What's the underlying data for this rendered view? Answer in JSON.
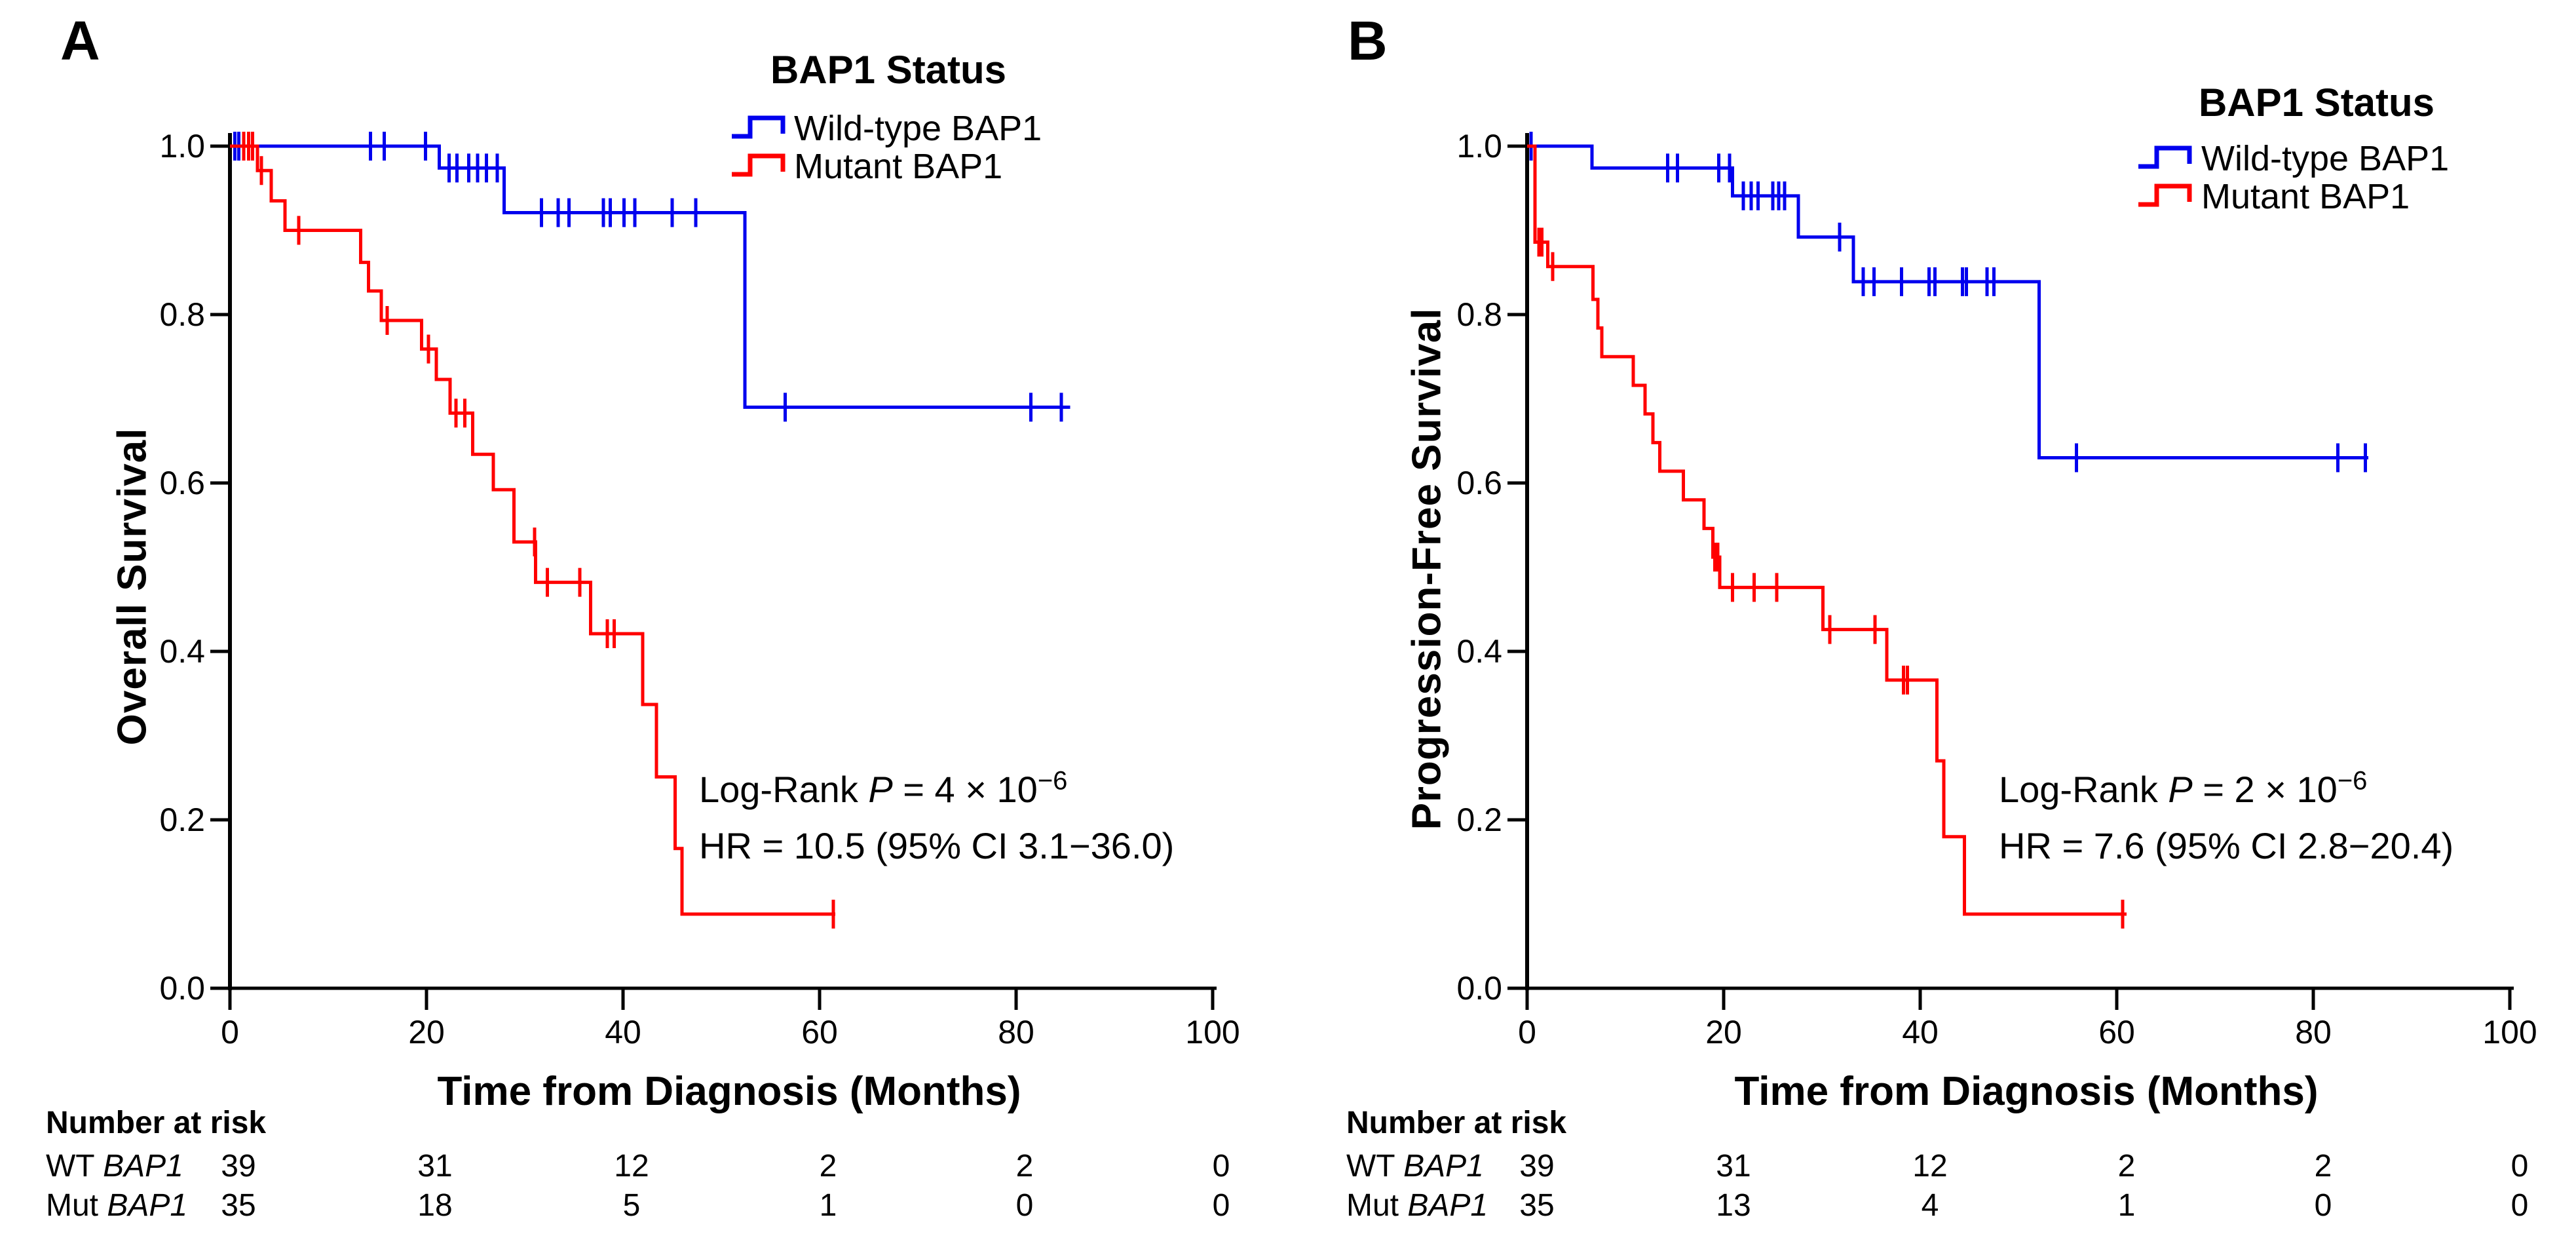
{
  "figure": {
    "description": "Kaplan-Meier survival curves by BAP1 mutation status, two panels",
    "accent_colors": {
      "wild_type": "#0000ee",
      "mutant": "#ff0000",
      "axis": "#000000"
    }
  },
  "chart_data": [
    {
      "type": "line",
      "subtype": "kaplan-meier-step",
      "panel_label": "A",
      "ylabel": "Overall  Survival",
      "xlabel": "Time from Diagnosis (Months)",
      "xlim": [
        0,
        100
      ],
      "ylim": [
        0.0,
        1.0
      ],
      "xticks": [
        "0",
        "20",
        "40",
        "60",
        "80",
        "100"
      ],
      "yticks": [
        "0.0",
        "0.2",
        "0.4",
        "0.6",
        "0.8",
        "1.0"
      ],
      "grid": false,
      "legend": {
        "title": "BAP1 Status",
        "position": "top-right-of-plot",
        "entries": [
          {
            "label": "Wild-type BAP1",
            "color": "#0000ee"
          },
          {
            "label": "Mutant BAP1",
            "color": "#ff0000"
          }
        ]
      },
      "annotation": {
        "logrank_prefix": "Log-Rank ",
        "logrank_p": "P",
        "logrank_value": " = 4 × 10",
        "logrank_exponent": "−6",
        "hr_line": "HR = 10.5 (95% CI 3.1−36.0)"
      },
      "series": [
        {
          "name": "Wild-type BAP1",
          "color": "#0000ee",
          "start_value": 1.0,
          "end_time": 85.5,
          "steps": [
            [
              21.3,
              0.974
            ],
            [
              27.9,
              0.921
            ],
            [
              52.4,
              0.69
            ]
          ],
          "censors": [
            [
              0.5,
              1.0
            ],
            [
              0.9,
              1.0
            ],
            [
              14.3,
              1.0
            ],
            [
              15.7,
              1.0
            ],
            [
              19.9,
              1.0
            ],
            [
              22.3,
              0.974
            ],
            [
              23.1,
              0.974
            ],
            [
              24.3,
              0.974
            ],
            [
              25.2,
              0.974
            ],
            [
              26.1,
              0.974
            ],
            [
              27.2,
              0.974
            ],
            [
              31.7,
              0.921
            ],
            [
              33.4,
              0.921
            ],
            [
              34.5,
              0.921
            ],
            [
              38.0,
              0.921
            ],
            [
              38.7,
              0.921
            ],
            [
              40.1,
              0.921
            ],
            [
              41.2,
              0.921
            ],
            [
              45.0,
              0.921
            ],
            [
              47.4,
              0.921
            ],
            [
              56.5,
              0.69
            ],
            [
              81.5,
              0.69
            ],
            [
              84.6,
              0.69
            ]
          ]
        },
        {
          "name": "Mutant BAP1",
          "color": "#ff0000",
          "start_value": 1.0,
          "end_time": 61.6,
          "steps": [
            [
              2.8,
              0.971
            ],
            [
              4.2,
              0.935
            ],
            [
              5.6,
              0.9
            ],
            [
              13.3,
              0.862
            ],
            [
              14.1,
              0.828
            ],
            [
              15.4,
              0.793
            ],
            [
              19.5,
              0.759
            ],
            [
              21.0,
              0.723
            ],
            [
              22.4,
              0.683
            ],
            [
              24.7,
              0.634
            ],
            [
              26.8,
              0.592
            ],
            [
              28.9,
              0.53
            ],
            [
              31.1,
              0.482
            ],
            [
              36.7,
              0.421
            ],
            [
              42.0,
              0.337
            ],
            [
              43.4,
              0.251
            ],
            [
              45.3,
              0.166
            ],
            [
              46.0,
              0.088
            ]
          ],
          "censors": [
            [
              1.4,
              1.0
            ],
            [
              1.9,
              1.0
            ],
            [
              2.3,
              1.0
            ],
            [
              3.2,
              0.971
            ],
            [
              7.0,
              0.9
            ],
            [
              16.0,
              0.793
            ],
            [
              20.2,
              0.759
            ],
            [
              23.0,
              0.683
            ],
            [
              23.9,
              0.683
            ],
            [
              31.0,
              0.53
            ],
            [
              32.3,
              0.482
            ],
            [
              35.6,
              0.482
            ],
            [
              38.4,
              0.421
            ],
            [
              39.1,
              0.421
            ],
            [
              61.4,
              0.088
            ]
          ]
        }
      ],
      "risk_table": {
        "header": "Number at risk",
        "rows": [
          {
            "prefix": "WT ",
            "gene": "BAP1",
            "counts": [
              "39",
              "31",
              "12",
              "2",
              "2",
              "0"
            ]
          },
          {
            "prefix": "Mut ",
            "gene": "BAP1",
            "counts": [
              "35",
              "18",
              "5",
              "1",
              "0",
              "0"
            ]
          }
        ]
      }
    },
    {
      "type": "line",
      "subtype": "kaplan-meier-step",
      "panel_label": "B",
      "ylabel": "Progression-Free  Survival",
      "xlabel": "Time from Diagnosis (Months)",
      "xlim": [
        0,
        100
      ],
      "ylim": [
        0.0,
        1.0
      ],
      "xticks": [
        "0",
        "20",
        "40",
        "60",
        "80",
        "100"
      ],
      "yticks": [
        "0.0",
        "0.2",
        "0.4",
        "0.6",
        "0.8",
        "1.0"
      ],
      "grid": false,
      "legend": {
        "title": "BAP1 Status",
        "position": "top-right-of-plot",
        "entries": [
          {
            "label": "Wild-type BAP1",
            "color": "#0000ee"
          },
          {
            "label": "Mutant BAP1",
            "color": "#ff0000"
          }
        ]
      },
      "annotation": {
        "logrank_prefix": "Log-Rank ",
        "logrank_p": "P",
        "logrank_value": " = 2 × 10",
        "logrank_exponent": "−6",
        "hr_line": "HR = 7.6 (95% CI 2.8−20.4)"
      },
      "series": [
        {
          "name": "Wild-type BAP1",
          "color": "#0000ee",
          "start_value": 1.0,
          "end_time": 85.6,
          "steps": [
            [
              6.6,
              0.974
            ],
            [
              20.9,
              0.941
            ],
            [
              27.6,
              0.892
            ],
            [
              33.2,
              0.839
            ],
            [
              52.1,
              0.63
            ]
          ],
          "censors": [
            [
              0.4,
              1.0
            ],
            [
              14.3,
              0.974
            ],
            [
              15.3,
              0.974
            ],
            [
              19.5,
              0.974
            ],
            [
              20.6,
              0.974
            ],
            [
              22.0,
              0.941
            ],
            [
              22.8,
              0.941
            ],
            [
              23.5,
              0.941
            ],
            [
              25.0,
              0.941
            ],
            [
              25.6,
              0.941
            ],
            [
              26.2,
              0.941
            ],
            [
              31.8,
              0.892
            ],
            [
              34.2,
              0.839
            ],
            [
              35.3,
              0.839
            ],
            [
              38.1,
              0.839
            ],
            [
              40.9,
              0.839
            ],
            [
              41.5,
              0.839
            ],
            [
              44.3,
              0.839
            ],
            [
              44.7,
              0.839
            ],
            [
              46.8,
              0.839
            ],
            [
              47.5,
              0.839
            ],
            [
              55.9,
              0.63
            ],
            [
              82.5,
              0.63
            ],
            [
              85.3,
              0.63
            ]
          ]
        },
        {
          "name": "Mutant BAP1",
          "color": "#ff0000",
          "start_value": 1.0,
          "end_time": 61.0,
          "steps": [
            [
              0.8,
              0.886
            ],
            [
              2.1,
              0.857
            ],
            [
              6.7,
              0.818
            ],
            [
              7.2,
              0.784
            ],
            [
              7.6,
              0.75
            ],
            [
              10.8,
              0.716
            ],
            [
              12.0,
              0.682
            ],
            [
              12.8,
              0.648
            ],
            [
              13.5,
              0.614
            ],
            [
              15.9,
              0.58
            ],
            [
              18.0,
              0.546
            ],
            [
              18.9,
              0.512
            ],
            [
              19.6,
              0.476
            ],
            [
              30.1,
              0.426
            ],
            [
              36.6,
              0.366
            ],
            [
              41.7,
              0.27
            ],
            [
              42.4,
              0.18
            ],
            [
              44.5,
              0.088
            ]
          ],
          "censors": [
            [
              1.2,
              0.886
            ],
            [
              1.5,
              0.886
            ],
            [
              2.6,
              0.857
            ],
            [
              19.1,
              0.512
            ],
            [
              19.4,
              0.512
            ],
            [
              20.9,
              0.476
            ],
            [
              23.1,
              0.476
            ],
            [
              25.4,
              0.476
            ],
            [
              30.8,
              0.426
            ],
            [
              35.4,
              0.426
            ],
            [
              38.3,
              0.366
            ],
            [
              38.7,
              0.366
            ],
            [
              60.6,
              0.088
            ]
          ]
        }
      ],
      "risk_table": {
        "header": "Number at risk",
        "rows": [
          {
            "prefix": "WT ",
            "gene": "BAP1",
            "counts": [
              "39",
              "31",
              "12",
              "2",
              "2",
              "0"
            ]
          },
          {
            "prefix": "Mut ",
            "gene": "BAP1",
            "counts": [
              "35",
              "13",
              "4",
              "1",
              "0",
              "0"
            ]
          }
        ]
      }
    }
  ]
}
